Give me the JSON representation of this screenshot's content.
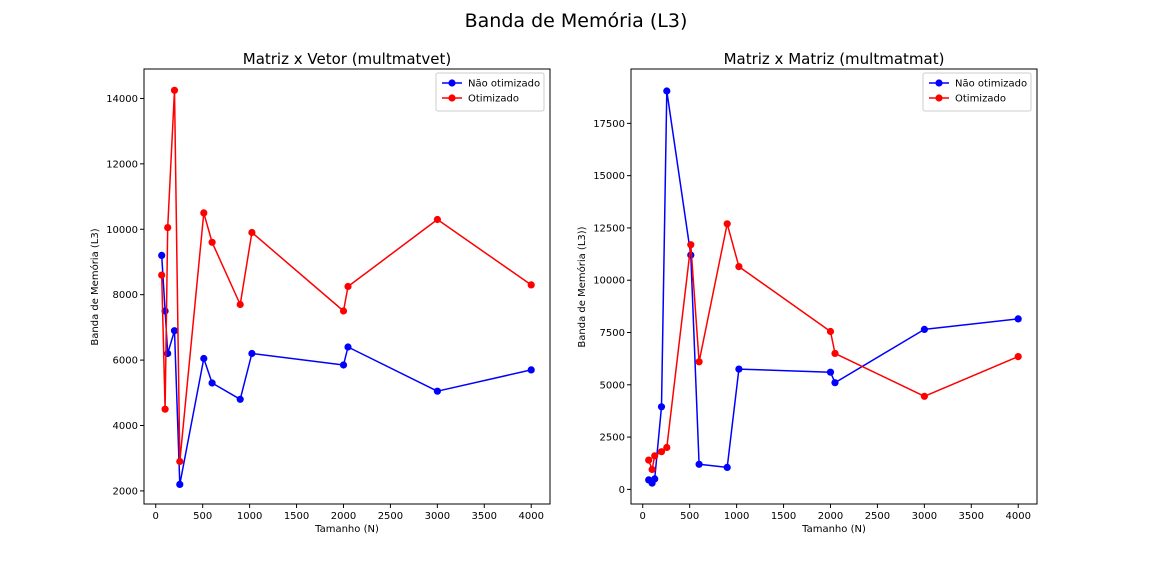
{
  "figure": {
    "suptitle": "Banda de Memória (L3)"
  },
  "chart_data": [
    {
      "type": "line",
      "title": "Matriz x Vetor (multmatvet)",
      "xlabel": "Tamanho (N)",
      "ylabel": "Banda de Memória (L3)",
      "xlim": [
        -125,
        4200
      ],
      "ylim": [
        1600,
        14900
      ],
      "xticks": [
        0,
        500,
        1000,
        1500,
        2000,
        2500,
        3000,
        3500,
        4000
      ],
      "yticks": [
        2000,
        4000,
        6000,
        8000,
        10000,
        12000,
        14000
      ],
      "ytick_labels": [
        "2000",
        "4000",
        "6000",
        "8000",
        "10000",
        "12000",
        "14000"
      ],
      "legend": "top-right",
      "grid": false,
      "series": [
        {
          "name": "Não otimizado",
          "color": "#0000ff",
          "marker": "circle",
          "x": [
            64,
            100,
            128,
            200,
            256,
            512,
            600,
            900,
            1024,
            2000,
            2048,
            3000,
            4000
          ],
          "y": [
            9200,
            7500,
            6200,
            6900,
            2200,
            6050,
            5300,
            4800,
            6200,
            5850,
            6400,
            5050,
            5700
          ]
        },
        {
          "name": "Otimizado",
          "color": "#ff0000",
          "marker": "circle",
          "x": [
            64,
            100,
            128,
            200,
            256,
            512,
            600,
            900,
            1024,
            2000,
            2048,
            3000,
            4000
          ],
          "y": [
            8600,
            4500,
            10050,
            14250,
            2900,
            10500,
            9600,
            7700,
            9900,
            7500,
            8250,
            10300,
            8300
          ]
        }
      ]
    },
    {
      "type": "line",
      "title": "Matriz x Matriz (multmatmat)",
      "xlabel": "Tamanho (N)",
      "ylabel": "Banda de Memória (L3))",
      "xlim": [
        -125,
        4200
      ],
      "ylim": [
        -700,
        20100
      ],
      "xticks": [
        0,
        500,
        1000,
        1500,
        2000,
        2500,
        3000,
        3500,
        4000
      ],
      "yticks": [
        0,
        2500,
        5000,
        7500,
        10000,
        12500,
        15000,
        17500
      ],
      "ytick_labels": [
        "0",
        "2500",
        "5000",
        "7500",
        "10000",
        "12500",
        "15000",
        "17500"
      ],
      "legend": "top-right",
      "grid": false,
      "series": [
        {
          "name": "Não otimizado",
          "color": "#0000ff",
          "marker": "circle",
          "x": [
            64,
            100,
            128,
            200,
            256,
            512,
            600,
            900,
            1024,
            2000,
            2048,
            3000,
            4000
          ],
          "y": [
            450,
            300,
            500,
            3950,
            19050,
            11200,
            1200,
            1050,
            5750,
            5600,
            5100,
            7650,
            8150
          ]
        },
        {
          "name": "Otimizado",
          "color": "#ff0000",
          "marker": "circle",
          "x": [
            64,
            100,
            128,
            200,
            256,
            512,
            600,
            900,
            1024,
            2000,
            2048,
            3000,
            4000
          ],
          "y": [
            1400,
            950,
            1600,
            1800,
            2000,
            11700,
            6100,
            12700,
            10650,
            7550,
            6500,
            4450,
            6350
          ]
        }
      ]
    }
  ]
}
